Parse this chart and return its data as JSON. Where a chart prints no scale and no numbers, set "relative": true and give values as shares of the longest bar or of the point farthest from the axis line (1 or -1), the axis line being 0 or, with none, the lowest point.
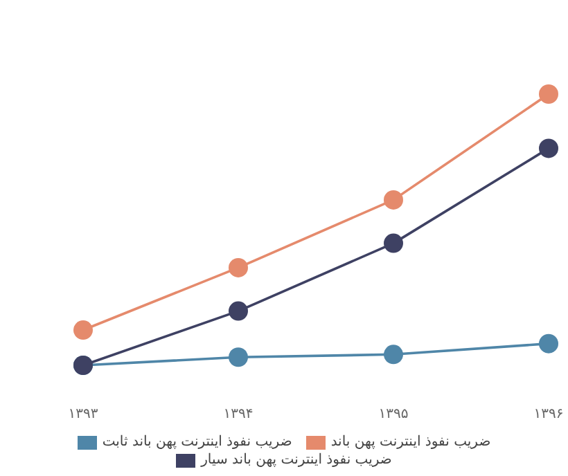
{
  "chart_data": {
    "type": "line",
    "relative": true,
    "categories": [
      "۱۳۹۳",
      "۱۳۹۴",
      "۱۳۹۵",
      "۱۳۹۶"
    ],
    "marker": "circle",
    "legend": "bottom",
    "grid": false,
    "series": [
      {
        "name": "ضریب نفوذ اینترنت پهن باند",
        "color": "#e58a6c",
        "values": [
          0.13,
          0.36,
          0.61,
          1
        ]
      },
      {
        "name": "ضریب نفوذ اینترنت پهن باند ثابت",
        "color": "#4f86a8",
        "values": [
          0,
          0.03,
          0.04,
          0.08
        ]
      },
      {
        "name": "ضریب نفوذ اینترنت پهن باند سیار",
        "color": "#3e4163",
        "values": [
          0,
          0.2,
          0.45,
          0.8
        ]
      }
    ]
  }
}
